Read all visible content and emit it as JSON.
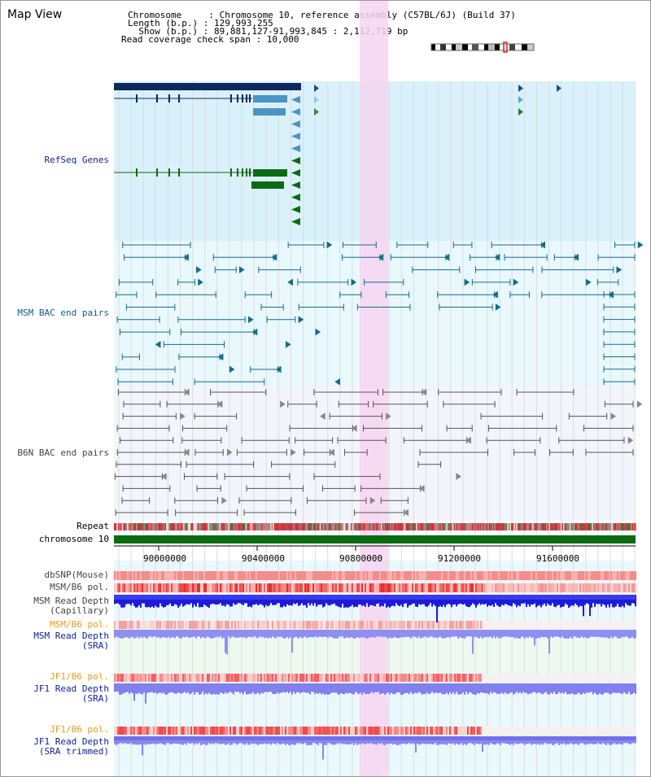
{
  "header": {
    "title": "Map View",
    "info_lines": [
      "Chromosome     : Chromosome 10, reference assembly (C57BL/6J) (Build 37)",
      "Length (b.p.) : 129,993,255",
      "  Show (b.p.) : 89,881,127-91,993,845 : 2,112,719 bp",
      "Read coverage check span : 10,000"
    ]
  },
  "tracks": {
    "refseq": "RefSeq Genes",
    "msm_bac": "MSM BAC end pairs",
    "b6n_bac": "B6N BAC end pairs",
    "repeat": "Repeat",
    "chromosome": "chromosome 10",
    "dbsnp": "dbSNP(Mouse)",
    "msm_b6_pol": "MSM/B6 pol.",
    "msm_depth_cap_1": "MSM Read Depth",
    "msm_depth_cap_2": "(Capillary)",
    "msm_b6_pol_2": "MSM/B6 pol.",
    "msm_depth_sra_1": "MSM Read Depth",
    "msm_depth_sra_2": "(SRA)",
    "jf1_b6_pol": "JF1/B6 pol.",
    "jf1_depth_sra_1": "JF1 Read Depth",
    "jf1_depth_sra_2": "(SRA)",
    "jf1_b6_pol_2": "JF1/B6 pol.",
    "jf1_depth_trim_1": "JF1 Read Depth",
    "jf1_depth_trim_2": "(SRA trimmed)"
  },
  "axis": {
    "ticks": [
      "90000000",
      "90400000",
      "90800000",
      "91200000",
      "91600000"
    ],
    "start_bp": 89881127,
    "end_bp": 91993845
  },
  "colors": {
    "refseq_bg": "#d9f1fb",
    "msm_bg": "#e9f8fc",
    "b6n_bg": "#f3f5fc",
    "highlight": "#f6d5f0",
    "gene_dark": "#0c2a5c",
    "gene_mid": "#4a94c4",
    "gene_green": "#0b6b12",
    "bac_teal": "#126d8c",
    "bac_gray": "#555555",
    "chromosome": "#0b6b12"
  }
}
